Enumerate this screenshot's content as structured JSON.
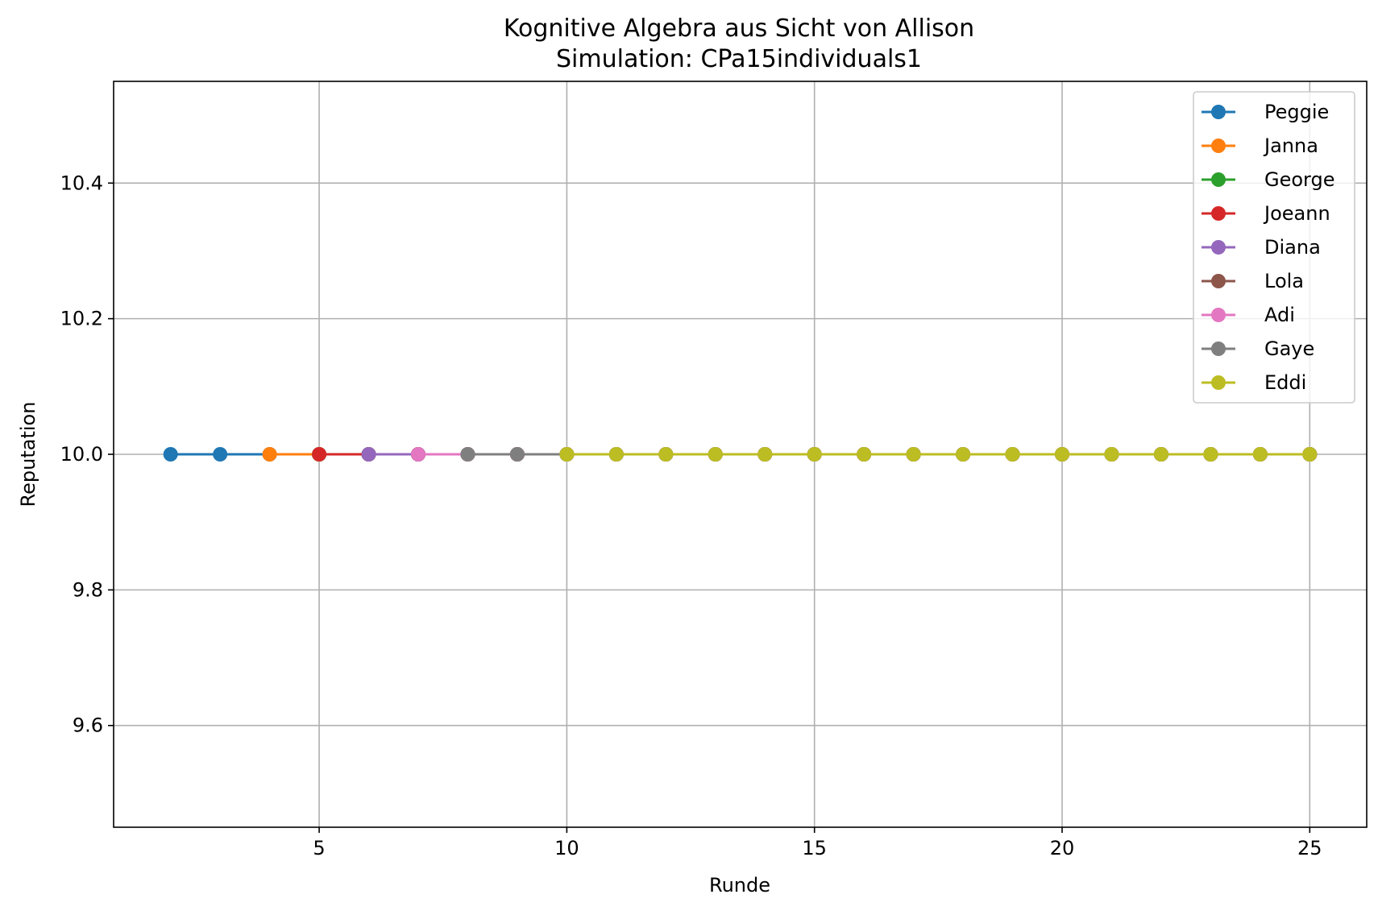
{
  "chart_data": {
    "type": "line",
    "title": "Kognitive Algebra aus Sicht von Allison",
    "subtitle": "Simulation: CPa15individuals1",
    "xlabel": "Runde",
    "ylabel": "Reputation",
    "xlim": [
      0.85,
      26.15
    ],
    "ylim": [
      9.45,
      10.55
    ],
    "xticks": [
      5,
      10,
      15,
      20,
      25
    ],
    "xtick_labels": [
      "5",
      "10",
      "15",
      "20",
      "25"
    ],
    "yticks": [
      9.6,
      9.8,
      10.0,
      10.2,
      10.4
    ],
    "ytick_labels": [
      "9.6",
      "9.8",
      "10.0",
      "10.2",
      "10.4"
    ],
    "grid": true,
    "legend_position": "top-right",
    "series": [
      {
        "name": "Peggie",
        "color": "#1f77b4",
        "x": [
          2,
          3,
          4,
          5,
          6,
          7,
          8,
          9,
          10,
          11,
          12,
          13,
          14,
          15,
          16,
          17,
          18,
          19,
          20,
          21,
          22,
          23,
          24,
          25
        ],
        "y": [
          10.0,
          10.0,
          10.0,
          10.0,
          10.0,
          10.0,
          10.0,
          10.0,
          10.0,
          10.0,
          10.0,
          10.0,
          10.0,
          10.0,
          10.0,
          10.0,
          10.0,
          10.0,
          10.0,
          10.0,
          10.0,
          10.0,
          10.0,
          10.0
        ]
      },
      {
        "name": "Janna",
        "color": "#ff7f0e",
        "x": [
          4,
          5,
          6,
          7,
          8,
          9,
          10,
          11,
          12,
          13,
          14,
          15,
          16,
          17,
          18,
          19,
          20,
          21,
          22,
          23,
          24,
          25
        ],
        "y": [
          10.0,
          10.0,
          10.0,
          10.0,
          10.0,
          10.0,
          10.0,
          10.0,
          10.0,
          10.0,
          10.0,
          10.0,
          10.0,
          10.0,
          10.0,
          10.0,
          10.0,
          10.0,
          10.0,
          10.0,
          10.0,
          10.0
        ]
      },
      {
        "name": "George",
        "color": "#2ca02c",
        "x": [
          5,
          6,
          7,
          8,
          9,
          10,
          11,
          12,
          13,
          14,
          15,
          16,
          17,
          18,
          19,
          20,
          21,
          22,
          23,
          24,
          25
        ],
        "y": [
          10.0,
          10.0,
          10.0,
          10.0,
          10.0,
          10.0,
          10.0,
          10.0,
          10.0,
          10.0,
          10.0,
          10.0,
          10.0,
          10.0,
          10.0,
          10.0,
          10.0,
          10.0,
          10.0,
          10.0,
          10.0
        ]
      },
      {
        "name": "Joeann",
        "color": "#d62728",
        "x": [
          5,
          6,
          7,
          8,
          9,
          10,
          11,
          12,
          13,
          14,
          15,
          16,
          17,
          18,
          19,
          20,
          21,
          22,
          23,
          24,
          25
        ],
        "y": [
          10.0,
          10.0,
          10.0,
          10.0,
          10.0,
          10.0,
          10.0,
          10.0,
          10.0,
          10.0,
          10.0,
          10.0,
          10.0,
          10.0,
          10.0,
          10.0,
          10.0,
          10.0,
          10.0,
          10.0,
          10.0
        ]
      },
      {
        "name": "Diana",
        "color": "#9467bd",
        "x": [
          6,
          7,
          8,
          9,
          10,
          11,
          12,
          13,
          14,
          15,
          16,
          17,
          18,
          19,
          20,
          21,
          22,
          23,
          24,
          25
        ],
        "y": [
          10.0,
          10.0,
          10.0,
          10.0,
          10.0,
          10.0,
          10.0,
          10.0,
          10.0,
          10.0,
          10.0,
          10.0,
          10.0,
          10.0,
          10.0,
          10.0,
          10.0,
          10.0,
          10.0,
          10.0
        ]
      },
      {
        "name": "Lola",
        "color": "#8c564b",
        "x": [
          7,
          8,
          9,
          10,
          11,
          12,
          13,
          14,
          15,
          16,
          17,
          18,
          19,
          20,
          21,
          22,
          23,
          24,
          25
        ],
        "y": [
          10.0,
          10.0,
          10.0,
          10.0,
          10.0,
          10.0,
          10.0,
          10.0,
          10.0,
          10.0,
          10.0,
          10.0,
          10.0,
          10.0,
          10.0,
          10.0,
          10.0,
          10.0,
          10.0
        ]
      },
      {
        "name": "Adi",
        "color": "#e377c2",
        "x": [
          7,
          8,
          9,
          10,
          11,
          12,
          13,
          14,
          15,
          16,
          17,
          18,
          19,
          20,
          21,
          22,
          23,
          24,
          25
        ],
        "y": [
          10.0,
          10.0,
          10.0,
          10.0,
          10.0,
          10.0,
          10.0,
          10.0,
          10.0,
          10.0,
          10.0,
          10.0,
          10.0,
          10.0,
          10.0,
          10.0,
          10.0,
          10.0,
          10.0
        ]
      },
      {
        "name": "Gaye",
        "color": "#7f7f7f",
        "x": [
          8,
          9,
          10,
          11,
          12,
          13,
          14,
          15,
          16,
          17,
          18,
          19,
          20,
          21,
          22,
          23,
          24,
          25
        ],
        "y": [
          10.0,
          10.0,
          10.0,
          10.0,
          10.0,
          10.0,
          10.0,
          10.0,
          10.0,
          10.0,
          10.0,
          10.0,
          10.0,
          10.0,
          10.0,
          10.0,
          10.0,
          10.0
        ]
      },
      {
        "name": "Eddi",
        "color": "#bcbd22",
        "x": [
          10,
          11,
          12,
          13,
          14,
          15,
          16,
          17,
          18,
          19,
          20,
          21,
          22,
          23,
          24,
          25
        ],
        "y": [
          10.0,
          10.0,
          10.0,
          10.0,
          10.0,
          10.0,
          10.0,
          10.0,
          10.0,
          10.0,
          10.0,
          10.0,
          10.0,
          10.0,
          10.0,
          10.0
        ]
      }
    ]
  }
}
